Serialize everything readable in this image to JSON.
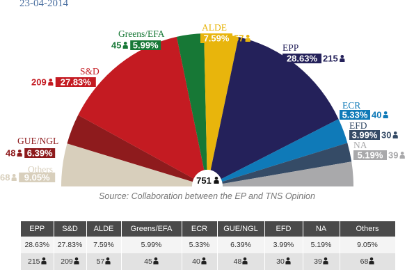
{
  "date": "23-04-2014",
  "source": "Source: Collaboration between the EP and TNS Opinion",
  "chart_data": {
    "type": "pie",
    "variant": "hemicycle",
    "total_seats": 751,
    "total_label": "751",
    "series": [
      {
        "name": "Others",
        "pct": 9.05,
        "pct_label": "9.05%",
        "seats": 68,
        "seats_label": "68",
        "color": "#d8cfbc"
      },
      {
        "name": "GUE/NGL",
        "pct": 6.39,
        "pct_label": "6.39%",
        "seats": 48,
        "seats_label": "48",
        "color": "#8e1b1d"
      },
      {
        "name": "S&D",
        "pct": 27.83,
        "pct_label": "27.83%",
        "seats": 209,
        "seats_label": "209",
        "color": "#c41b22"
      },
      {
        "name": "Greens/EFA",
        "pct": 5.99,
        "pct_label": "5.99%",
        "seats": 45,
        "seats_label": "45",
        "color": "#177836"
      },
      {
        "name": "ALDE",
        "pct": 7.59,
        "pct_label": "7.59%",
        "seats": 57,
        "seats_label": "57",
        "color": "#e8b50c"
      },
      {
        "name": "EPP",
        "pct": 28.63,
        "pct_label": "28.63%",
        "seats": 215,
        "seats_label": "215",
        "color": "#24215a"
      },
      {
        "name": "ECR",
        "pct": 5.33,
        "pct_label": "5.33%",
        "seats": 40,
        "seats_label": "40",
        "color": "#0f7ab8"
      },
      {
        "name": "EFD",
        "pct": 3.99,
        "pct_label": "3.99%",
        "seats": 30,
        "seats_label": "30",
        "color": "#354b66"
      },
      {
        "name": "NA",
        "pct": 5.19,
        "pct_label": "5.19%",
        "seats": 39,
        "seats_label": "39",
        "color": "#a9a9ab"
      }
    ]
  },
  "table": {
    "headers": [
      "EPP",
      "S&D",
      "ALDE",
      "Greens/EFA",
      "ECR",
      "GUE/NGL",
      "EFD",
      "NA",
      "Others"
    ],
    "pct_row": [
      "28.63%",
      "27.83%",
      "7.59%",
      "5.99%",
      "5.33%",
      "6.39%",
      "3.99%",
      "5.19%",
      "9.05%"
    ],
    "seats_row": [
      "215",
      "209",
      "57",
      "45",
      "40",
      "48",
      "30",
      "39",
      "68"
    ]
  },
  "icons": {
    "seat": "person-icon"
  }
}
